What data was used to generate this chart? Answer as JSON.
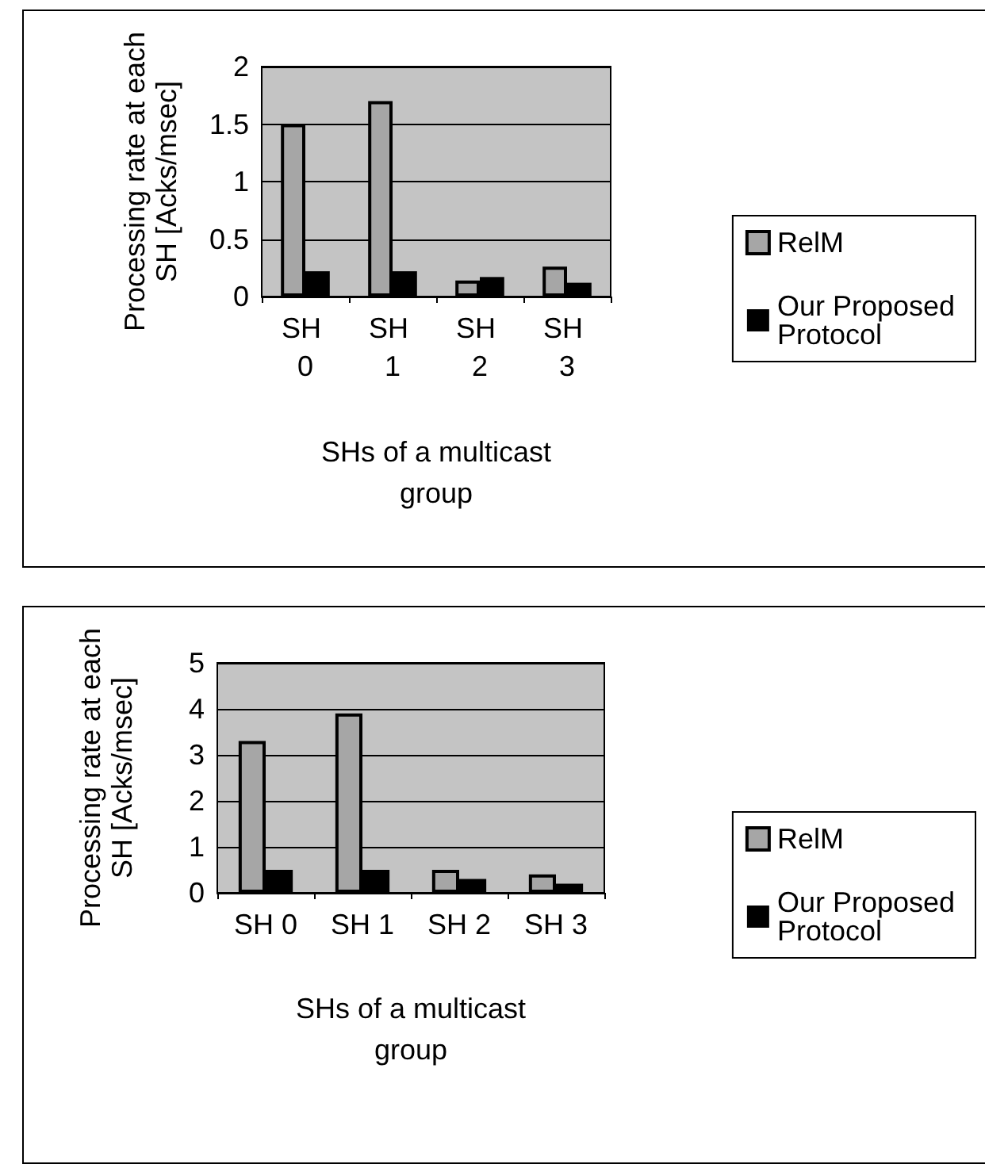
{
  "chart_data": [
    {
      "type": "bar",
      "xlabel": "SHs of a multicast group",
      "ylabel": "Processing rate at each SH [Acks/msec]",
      "categories": [
        "SH 0",
        "SH 1",
        "SH 2",
        "SH 3"
      ],
      "series": [
        {
          "name": "RelM",
          "color": "#a6a6a6",
          "values": [
            1.5,
            1.7,
            0.14,
            0.26
          ]
        },
        {
          "name": "Our Proposed Protocol",
          "color": "#000000",
          "values": [
            0.22,
            0.22,
            0.17,
            0.12
          ]
        }
      ],
      "ylim": [
        0,
        2
      ],
      "yticks": [
        0,
        0.5,
        1,
        1.5,
        2
      ],
      "grid": "y",
      "legend": "right"
    },
    {
      "type": "bar",
      "xlabel": "SHs of a multicast group",
      "ylabel": "Processing rate at each SH [Acks/msec]",
      "categories": [
        "SH 0",
        "SH 1",
        "SH 2",
        "SH 3"
      ],
      "series": [
        {
          "name": "RelM",
          "color": "#a6a6a6",
          "values": [
            3.3,
            3.9,
            0.5,
            0.4
          ]
        },
        {
          "name": "Our Proposed Protocol",
          "color": "#000000",
          "values": [
            0.5,
            0.5,
            0.3,
            0.2
          ]
        }
      ],
      "ylim": [
        0,
        5
      ],
      "yticks": [
        0,
        1,
        2,
        3,
        4,
        5
      ],
      "grid": "y",
      "legend": "right"
    }
  ]
}
